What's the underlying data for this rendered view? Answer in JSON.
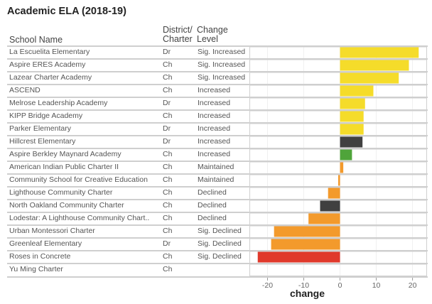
{
  "chart_data": {
    "type": "bar",
    "orientation": "horizontal",
    "title": "Academic ELA (2018-19)",
    "xlabel": "change",
    "ylabel": "",
    "xlim": [
      -25,
      24
    ],
    "xticks": [
      -20,
      -10,
      0,
      10,
      20
    ],
    "grid": true,
    "columns": [
      "School Name",
      "District/ Charter",
      "Change Level"
    ],
    "column_headers": {
      "school": "School Name",
      "dc_line1": "District/",
      "dc_line2": "Charter",
      "cl_line1": "Change",
      "cl_line2": "Level"
    },
    "rows": [
      {
        "school": "La Escuelita Elementary",
        "type": "Dr",
        "level": "Sig. Increased",
        "change": 21.7,
        "color": "#F5DC2A"
      },
      {
        "school": "Aspire ERES Academy",
        "type": "Ch",
        "level": "Sig. Increased",
        "change": 19.0,
        "color": "#F5DC2A"
      },
      {
        "school": "Lazear Charter Academy",
        "type": "Ch",
        "level": "Sig. Increased",
        "change": 16.2,
        "color": "#F5DC2A"
      },
      {
        "school": "ASCEND",
        "type": "Ch",
        "level": "Increased",
        "change": 9.2,
        "color": "#F5DC2A"
      },
      {
        "school": "Melrose Leadership Academy",
        "type": "Dr",
        "level": "Increased",
        "change": 6.9,
        "color": "#F5DC2A"
      },
      {
        "school": "KIPP Bridge Academy",
        "type": "Ch",
        "level": "Increased",
        "change": 6.5,
        "color": "#F5DC2A"
      },
      {
        "school": "Parker Elementary",
        "type": "Dr",
        "level": "Increased",
        "change": 6.5,
        "color": "#F5DC2A"
      },
      {
        "school": "Hillcrest Elementary",
        "type": "Dr",
        "level": "Increased",
        "change": 6.2,
        "color": "#404040"
      },
      {
        "school": "Aspire Berkley Maynard Academy",
        "type": "Ch",
        "level": "Increased",
        "change": 3.3,
        "color": "#4FA43A"
      },
      {
        "school": "American Indian Public Charter II",
        "type": "Ch",
        "level": "Maintained",
        "change": 0.9,
        "color": "#F39A2C"
      },
      {
        "school": "Community School for Creative Education",
        "type": "Ch",
        "level": "Maintained",
        "change": -0.5,
        "color": "#F39A2C"
      },
      {
        "school": "Lighthouse Community Charter",
        "type": "Ch",
        "level": "Declined",
        "change": -3.3,
        "color": "#F39A2C"
      },
      {
        "school": "North Oakland Community Charter",
        "type": "Ch",
        "level": "Declined",
        "change": -5.5,
        "color": "#404040"
      },
      {
        "school": "Lodestar: A Lighthouse Community Chart..",
        "type": "Ch",
        "level": "Declined",
        "change": -8.7,
        "color": "#F39A2C"
      },
      {
        "school": "Urban Montessori Charter",
        "type": "Ch",
        "level": "Sig. Declined",
        "change": -18.2,
        "color": "#F39A2C"
      },
      {
        "school": "Greenleaf Elementary",
        "type": "Dr",
        "level": "Sig. Declined",
        "change": -19.0,
        "color": "#F39A2C"
      },
      {
        "school": "Roses in Concrete",
        "type": "Ch",
        "level": "Sig. Declined",
        "change": -22.7,
        "color": "#E0392B"
      },
      {
        "school": "Yu Ming Charter",
        "type": "Ch",
        "level": "",
        "change": null,
        "color": null
      }
    ]
  }
}
